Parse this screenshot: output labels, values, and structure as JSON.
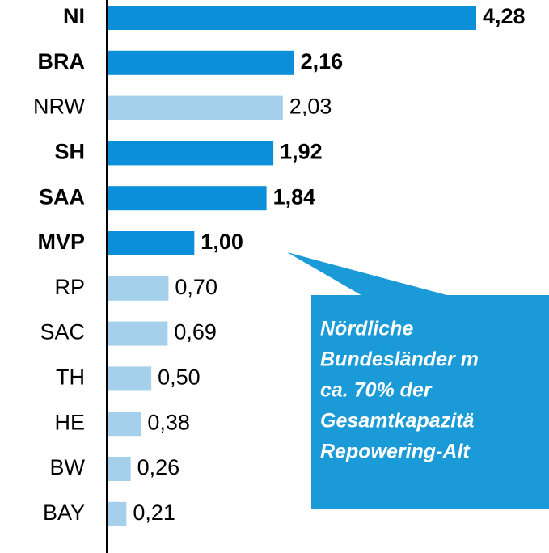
{
  "chart_data": {
    "type": "hbar",
    "categories": [
      "NI",
      "BRA",
      "NRW",
      "SH",
      "SAA",
      "MVP",
      "RP",
      "SAC",
      "TH",
      "HE",
      "BW",
      "BAY"
    ],
    "values": [
      4.28,
      2.16,
      2.03,
      1.92,
      1.84,
      1.0,
      0.7,
      0.69,
      0.5,
      0.38,
      0.26,
      0.21
    ],
    "value_labels": [
      "4,28",
      "2,16",
      "2,03",
      "1,92",
      "1,84",
      "1,00",
      "0,70",
      "0,69",
      "0,50",
      "0,38",
      "0,26",
      "0,21"
    ],
    "colors": [
      "#0a8fd8",
      "#0a8fd8",
      "#a4d0ec",
      "#0a8fd8",
      "#0a8fd8",
      "#0a8fd8",
      "#a4d0ec",
      "#a4d0ec",
      "#a4d0ec",
      "#a4d0ec",
      "#a4d0ec",
      "#a4d0ec"
    ],
    "bold": [
      true,
      true,
      false,
      true,
      true,
      true,
      false,
      false,
      false,
      false,
      false,
      false
    ],
    "annotation": {
      "lines": [
        "Nördliche",
        "Bundesländer m",
        "ca. 70% der",
        "Gesamtkapazitä",
        "Repowering-Alt"
      ],
      "color": "#1b9ad8"
    }
  }
}
